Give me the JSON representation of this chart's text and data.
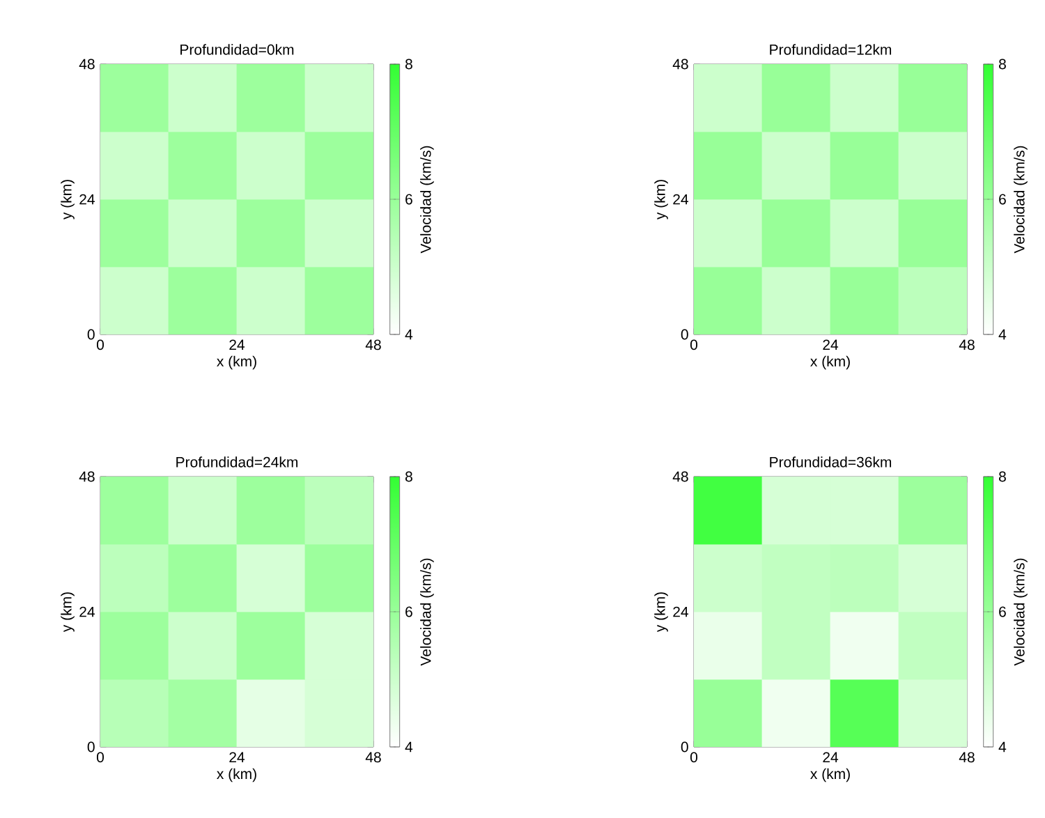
{
  "chart_data": [
    {
      "type": "heatmap",
      "title": "Profundidad=0km",
      "xlabel": "x (km)",
      "ylabel": "y (km)",
      "clabel": "Velocidad (km/s)",
      "x": [
        6,
        18,
        30,
        42
      ],
      "y": [
        42,
        30,
        18,
        6
      ],
      "xlim": [
        0,
        48
      ],
      "ylim": [
        0,
        48
      ],
      "xticks": [
        0,
        24,
        48
      ],
      "yticks": [
        0,
        24,
        48
      ],
      "clim": [
        4,
        8
      ],
      "cticks": [
        4,
        6,
        8
      ],
      "color": "#33ff33",
      "cells": [
        [
          5.9,
          5.0,
          5.9,
          5.0
        ],
        [
          5.0,
          5.9,
          5.0,
          5.9
        ],
        [
          5.9,
          5.0,
          5.9,
          5.0
        ],
        [
          5.0,
          5.9,
          5.0,
          5.9
        ]
      ]
    },
    {
      "type": "heatmap",
      "title": "Profundidad=12km",
      "xlabel": "x (km)",
      "ylabel": "y (km)",
      "clabel": "Velocidad (km/s)",
      "x": [
        6,
        18,
        30,
        42
      ],
      "y": [
        42,
        30,
        18,
        6
      ],
      "xlim": [
        0,
        48
      ],
      "ylim": [
        0,
        48
      ],
      "xticks": [
        0,
        24,
        48
      ],
      "yticks": [
        0,
        24,
        48
      ],
      "clim": [
        4,
        8
      ],
      "cticks": [
        4,
        6,
        8
      ],
      "color": "#33ff33",
      "cells": [
        [
          5.0,
          6.0,
          5.0,
          6.0
        ],
        [
          6.0,
          5.0,
          6.0,
          5.0
        ],
        [
          5.0,
          6.0,
          5.0,
          6.0
        ],
        [
          6.0,
          5.0,
          6.0,
          5.3
        ]
      ]
    },
    {
      "type": "heatmap",
      "title": "Profundidad=24km",
      "xlabel": "x (km)",
      "ylabel": "y (km)",
      "clabel": "Velocidad (km/s)",
      "x": [
        6,
        18,
        30,
        42
      ],
      "y": [
        42,
        30,
        18,
        6
      ],
      "xlim": [
        0,
        48
      ],
      "ylim": [
        0,
        48
      ],
      "xticks": [
        0,
        24,
        48
      ],
      "yticks": [
        0,
        24,
        48
      ],
      "clim": [
        4,
        8
      ],
      "cticks": [
        4,
        6,
        8
      ],
      "color": "#33ff33",
      "cells": [
        [
          5.9,
          5.0,
          5.9,
          5.3
        ],
        [
          5.3,
          5.9,
          4.8,
          5.9
        ],
        [
          5.9,
          5.0,
          5.9,
          4.8
        ],
        [
          5.4,
          5.8,
          4.5,
          4.8
        ]
      ]
    },
    {
      "type": "heatmap",
      "title": "Profundidad=36km",
      "xlabel": "x (km)",
      "ylabel": "y (km)",
      "clabel": "Velocidad (km/s)",
      "x": [
        6,
        18,
        30,
        42
      ],
      "y": [
        42,
        30,
        18,
        6
      ],
      "xlim": [
        0,
        48
      ],
      "ylim": [
        0,
        48
      ],
      "xticks": [
        0,
        24,
        48
      ],
      "yticks": [
        0,
        24,
        48
      ],
      "clim": [
        4,
        8
      ],
      "cticks": [
        4,
        6,
        8
      ],
      "color": "#33ff33",
      "cells": [
        [
          7.7,
          4.8,
          4.8,
          5.9
        ],
        [
          5.0,
          5.2,
          5.3,
          4.8
        ],
        [
          4.4,
          5.2,
          4.3,
          5.2
        ],
        [
          6.0,
          4.3,
          7.3,
          4.8
        ]
      ]
    }
  ]
}
